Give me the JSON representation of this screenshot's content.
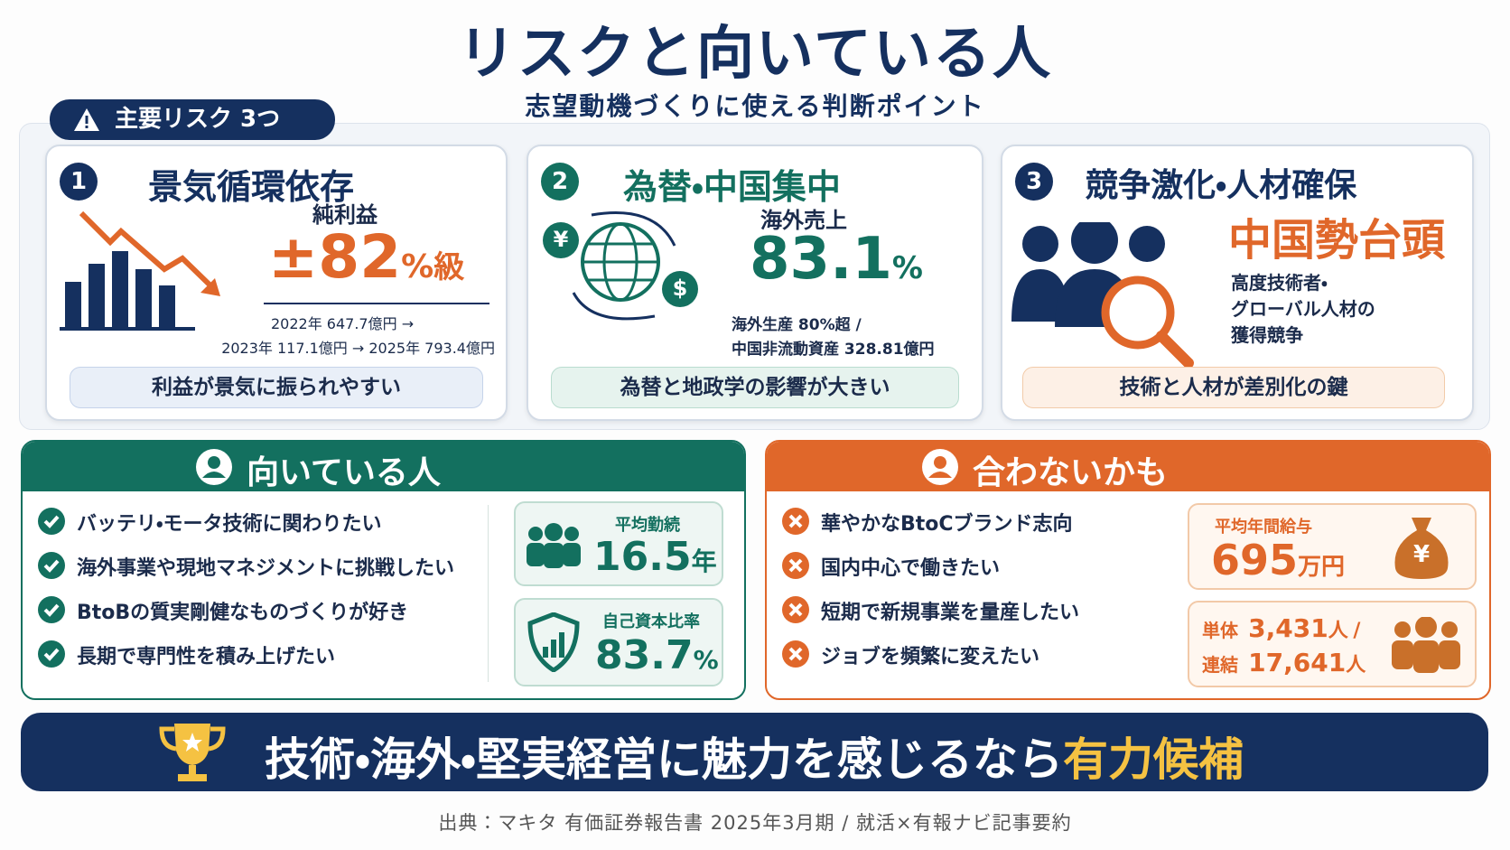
{
  "header": {
    "title": "リスクと向いている人",
    "subtitle": "志望動機づくりに使える判断ポイント"
  },
  "risk_section": {
    "label": "主要リスク 3つ",
    "cards": [
      {
        "number": "1",
        "title": "景気循環依存",
        "metric_label": "純利益",
        "metric_value": "±82",
        "metric_unit": "%",
        "metric_suffix": "級",
        "details": [
          "2022年 647.7億円 →",
          "2023年 117.1億円 → 2025年 793.4億円"
        ],
        "summary": "利益が景気に振られやすい"
      },
      {
        "number": "2",
        "title": "為替・中国集中",
        "icon_yen": "¥",
        "icon_dollar": "$",
        "metric_label": "海外売上",
        "metric_value": "83.1",
        "metric_unit": "%",
        "details": [
          "海外生産 80%超 /",
          "中国非流動資産 328.81億円"
        ],
        "summary": "為替と地政学の影響が大きい"
      },
      {
        "number": "3",
        "title": "競争激化・人材確保",
        "headline": "中国勢台頭",
        "details": [
          "高度技術者・",
          "グローバル人材の",
          "獲得競争"
        ],
        "summary": "技術と人材が差別化の鍵"
      }
    ]
  },
  "fit": {
    "title": "向いている人",
    "items": [
      "バッテリ・モータ技術に関わりたい",
      "海外事業や現地マネジメントに挑戦したい",
      "BtoBの質実剛健なものづくりが好き",
      "長期で専門性を積み上げたい"
    ],
    "stats": [
      {
        "label": "平均勤続",
        "value": "16.5",
        "unit": "年"
      },
      {
        "label": "自己資本比率",
        "value": "83.7",
        "unit": "%"
      }
    ]
  },
  "misfit": {
    "title": "合わないかも",
    "items": [
      "華やかなBtoCブランド志向",
      "国内中心で働きたい",
      "短期で新規事業を量産したい",
      "ジョブを頻繁に変えたい"
    ],
    "salary": {
      "label": "平均年間給与",
      "value": "695",
      "unit": "万円",
      "icon": "¥"
    },
    "employees": [
      {
        "label": "単体",
        "value": "3,431",
        "unit": "人",
        "separator": "/"
      },
      {
        "label": "連結",
        "value": "17,641",
        "unit": "人"
      }
    ]
  },
  "banner": {
    "text": "技術・海外・堅実経営に魅力を感じるなら",
    "highlight": "有力候補"
  },
  "footer": {
    "source": "出典：マキタ 有価証券報告書 2025年3月期 / 就活×有報ナビ記事要約"
  }
}
